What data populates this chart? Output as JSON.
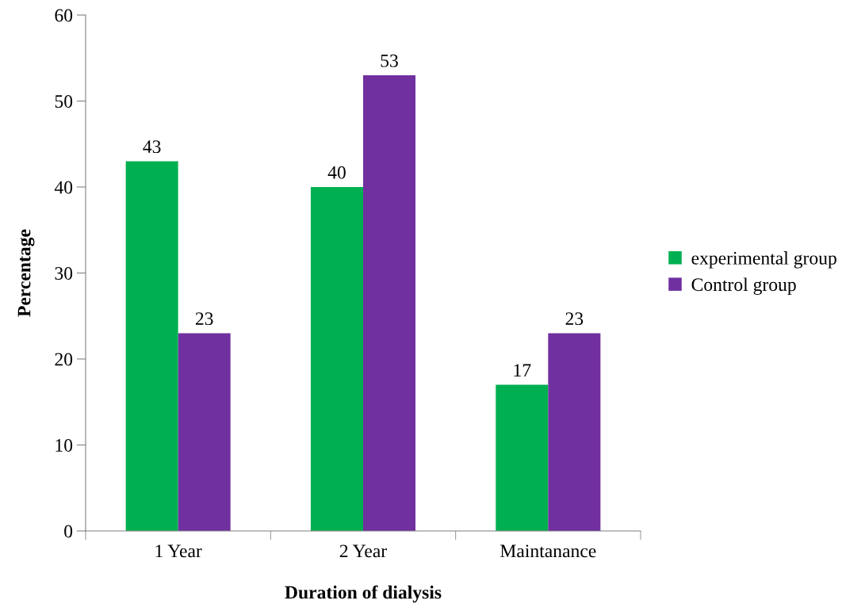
{
  "chart_data": {
    "type": "bar",
    "xlabel": "Duration of dialysis",
    "ylabel": "Percentage",
    "categories": [
      "1 Year",
      "2 Year",
      "Maintanance"
    ],
    "series": [
      {
        "name": "experimental group",
        "color": "#00b050",
        "values": [
          43,
          40,
          17
        ]
      },
      {
        "name": "Control group",
        "color": "#7030a0",
        "values": [
          23,
          53,
          23
        ]
      }
    ],
    "ylim": [
      0,
      60
    ],
    "yticks": [
      0,
      10,
      20,
      30,
      40,
      50,
      60
    ],
    "grid": false,
    "legend": "right",
    "data_labels": true
  }
}
